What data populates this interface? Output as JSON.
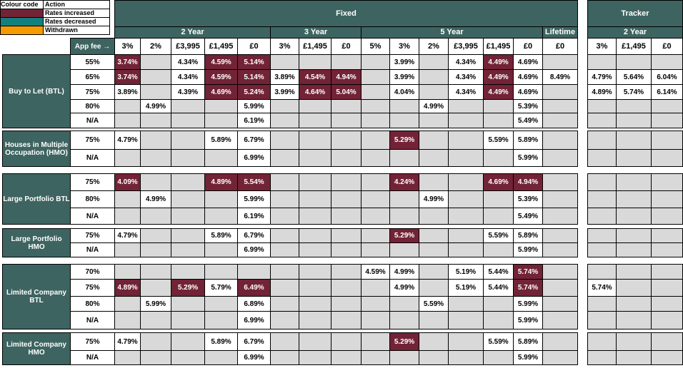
{
  "legend": {
    "header_code": "Colour code",
    "header_action": "Action",
    "items": [
      {
        "label": "Rates increased",
        "color": "#722336"
      },
      {
        "label": "Rates decreased",
        "color": "#12807f"
      },
      {
        "label": "Withdrawn",
        "color": "#f59b00"
      }
    ]
  },
  "headers": {
    "fixed": "Fixed",
    "tracker": "Tracker",
    "two_year": "2 Year",
    "three_year": "3 Year",
    "five_year": "5 Year",
    "lifetime": "Lifetime",
    "tracker_two_year": "2 Year",
    "app_fee": "App fee →"
  },
  "fee_columns": [
    "3%",
    "2%",
    "£3,995",
    "£1,495",
    "£0",
    "3%",
    "£1,495",
    "£0",
    "5%",
    "3%",
    "2%",
    "£3,995",
    "£1,495",
    "£0",
    "£0",
    "3%",
    "£1,495",
    "£0"
  ],
  "colors": {
    "header": "#3d6460",
    "increased": "#722336",
    "decreased": "#12807f",
    "withdrawn": "#f59b00",
    "empty": "#d9d9d9"
  },
  "groups": [
    {
      "name": "Buy to Let (BTL)",
      "rows": [
        {
          "ltv": "55%",
          "cells": [
            "3.74%",
            "",
            "4.34%",
            "4.59%",
            "5.14%",
            "",
            "",
            "",
            "",
            "3.99%",
            "",
            "4.34%",
            "4.49%",
            "4.69%",
            "",
            "",
            "",
            ""
          ],
          "inc": [
            0,
            3,
            4,
            12
          ]
        },
        {
          "ltv": "65%",
          "cells": [
            "3.74%",
            "",
            "4.34%",
            "4.59%",
            "5.14%",
            "3.89%",
            "4.54%",
            "4.94%",
            "",
            "3.99%",
            "",
            "4.34%",
            "4.49%",
            "4.69%",
            "8.49%",
            "4.79%",
            "5.64%",
            "6.04%"
          ],
          "inc": [
            0,
            3,
            4,
            6,
            7,
            12
          ]
        },
        {
          "ltv": "75%",
          "cells": [
            "3.89%",
            "",
            "4.39%",
            "4.69%",
            "5.24%",
            "3.99%",
            "4.64%",
            "5.04%",
            "",
            "4.04%",
            "",
            "4.34%",
            "4.49%",
            "4.69%",
            "",
            "4.89%",
            "5.74%",
            "6.14%"
          ],
          "inc": [
            3,
            4,
            6,
            7,
            12
          ]
        },
        {
          "ltv": "80%",
          "cells": [
            "",
            "4.99%",
            "",
            "",
            "5.99%",
            "",
            "",
            "",
            "",
            "",
            "4.99%",
            "",
            "",
            "5.39%",
            "",
            "",
            "",
            ""
          ],
          "inc": []
        },
        {
          "ltv": "N/A",
          "cells": [
            "",
            "",
            "",
            "",
            "6.19%",
            "",
            "",
            "",
            "",
            "",
            "",
            "",
            "",
            "5.49%",
            "",
            "",
            "",
            ""
          ],
          "inc": []
        }
      ]
    },
    {
      "name": "Houses in Multiple Occupation (HMO)",
      "rows": [
        {
          "ltv": "75%",
          "cells": [
            "4.79%",
            "",
            "",
            "5.89%",
            "6.79%",
            "",
            "",
            "",
            "",
            "5.29%",
            "",
            "",
            "5.59%",
            "5.89%",
            "",
            "",
            "",
            ""
          ],
          "inc": [
            9
          ]
        },
        {
          "ltv": "N/A",
          "cells": [
            "",
            "",
            "",
            "",
            "6.99%",
            "",
            "",
            "",
            "",
            "",
            "",
            "",
            "",
            "5.99%",
            "",
            "",
            "",
            ""
          ],
          "inc": []
        }
      ]
    },
    {
      "name": "Large Portfolio BTL",
      "rows": [
        {
          "ltv": "75%",
          "cells": [
            "4.09%",
            "",
            "",
            "4.89%",
            "5.54%",
            "",
            "",
            "",
            "",
            "4.24%",
            "",
            "",
            "4.69%",
            "4.94%",
            "",
            "",
            "",
            ""
          ],
          "inc": [
            0,
            3,
            4,
            9,
            12,
            13
          ]
        },
        {
          "ltv": "80%",
          "cells": [
            "",
            "4.99%",
            "",
            "",
            "5.99%",
            "",
            "",
            "",
            "",
            "",
            "4.99%",
            "",
            "",
            "5.39%",
            "",
            "",
            "",
            ""
          ],
          "inc": []
        },
        {
          "ltv": "N/A",
          "cells": [
            "",
            "",
            "",
            "",
            "6.19%",
            "",
            "",
            "",
            "",
            "",
            "",
            "",
            "",
            "5.49%",
            "",
            "",
            "",
            ""
          ],
          "inc": []
        }
      ]
    },
    {
      "name": "Large Portfolio HMO",
      "rows": [
        {
          "ltv": "75%",
          "cells": [
            "4.79%",
            "",
            "",
            "5.89%",
            "6.79%",
            "",
            "",
            "",
            "",
            "5.29%",
            "",
            "",
            "5.59%",
            "5.89%",
            "",
            "",
            "",
            ""
          ],
          "inc": [
            9
          ]
        },
        {
          "ltv": "N/A",
          "cells": [
            "",
            "",
            "",
            "",
            "6.99%",
            "",
            "",
            "",
            "",
            "",
            "",
            "",
            "",
            "5.99%",
            "",
            "",
            "",
            ""
          ],
          "inc": []
        }
      ]
    },
    {
      "name": "Limited Company BTL",
      "rows": [
        {
          "ltv": "70%",
          "cells": [
            "",
            "",
            "",
            "",
            "",
            "",
            "",
            "",
            "4.59%",
            "4.99%",
            "",
            "5.19%",
            "5.44%",
            "5.74%",
            "",
            "",
            "",
            ""
          ],
          "inc": [
            13
          ]
        },
        {
          "ltv": "75%",
          "cells": [
            "4.89%",
            "",
            "5.29%",
            "5.79%",
            "6.49%",
            "",
            "",
            "",
            "",
            "4.99%",
            "",
            "5.19%",
            "5.44%",
            "5.74%",
            "",
            "5.74%",
            "",
            ""
          ],
          "inc": [
            0,
            2,
            4,
            13
          ]
        },
        {
          "ltv": "80%",
          "cells": [
            "",
            "5.99%",
            "",
            "",
            "6.89%",
            "",
            "",
            "",
            "",
            "",
            "5.59%",
            "",
            "",
            "5.99%",
            "",
            "",
            "",
            ""
          ],
          "inc": []
        },
        {
          "ltv": "N/A",
          "cells": [
            "",
            "",
            "",
            "",
            "6.99%",
            "",
            "",
            "",
            "",
            "",
            "",
            "",
            "",
            "5.99%",
            "",
            "",
            "",
            ""
          ],
          "inc": []
        }
      ]
    },
    {
      "name": "Limited Company HMO",
      "rows": [
        {
          "ltv": "75%",
          "cells": [
            "4.79%",
            "",
            "",
            "5.89%",
            "6.79%",
            "",
            "",
            "",
            "",
            "5.29%",
            "",
            "",
            "5.59%",
            "5.89%",
            "",
            "",
            "",
            ""
          ],
          "inc": [
            9
          ]
        },
        {
          "ltv": "N/A",
          "cells": [
            "",
            "",
            "",
            "",
            "6.99%",
            "",
            "",
            "",
            "",
            "",
            "",
            "",
            "",
            "5.99%",
            "",
            "",
            "",
            ""
          ],
          "inc": []
        }
      ]
    }
  ]
}
